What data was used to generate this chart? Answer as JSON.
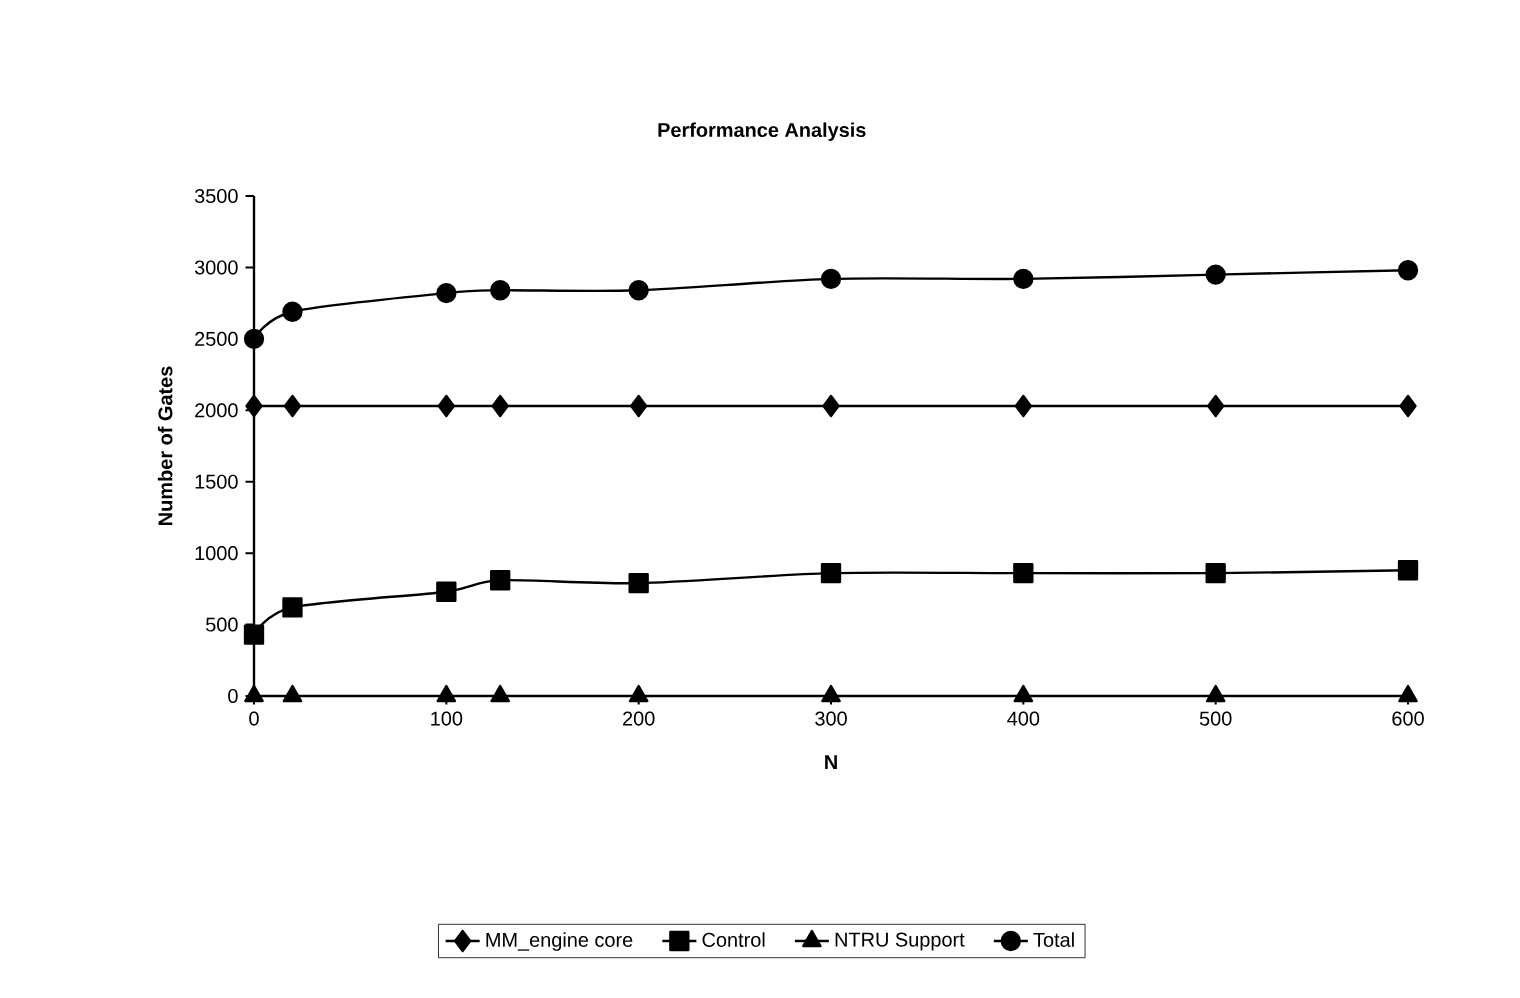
{
  "chart_data": {
    "type": "line",
    "title": "Performance Analysis",
    "xlabel": "N",
    "ylabel": "Number of Gates",
    "x": [
      0,
      20,
      100,
      128,
      200,
      300,
      400,
      500,
      600
    ],
    "series": [
      {
        "name": "MM_engine core",
        "color": "#000000",
        "marker": "diamond",
        "values": [
          2030,
          2030,
          2030,
          2030,
          2030,
          2030,
          2030,
          2030,
          2030
        ]
      },
      {
        "name": "Control",
        "color": "#000000",
        "marker": "square",
        "values": [
          430,
          620,
          730,
          810,
          790,
          860,
          860,
          860,
          880
        ]
      },
      {
        "name": "NTRU Support",
        "color": "#000000",
        "marker": "triangle",
        "values": [
          0,
          0,
          0,
          0,
          0,
          0,
          0,
          0,
          0
        ]
      },
      {
        "name": "Total",
        "color": "#000000",
        "marker": "circle",
        "values": [
          2500,
          2690,
          2820,
          2840,
          2840,
          2920,
          2920,
          2950,
          2980
        ]
      }
    ],
    "xlim": [
      0,
      600
    ],
    "xticks": [
      0,
      100,
      200,
      300,
      400,
      500,
      600
    ],
    "ylim": [
      0,
      3500
    ],
    "yticks": [
      0,
      500,
      1000,
      1500,
      2000,
      2500,
      3000,
      3500
    ],
    "grid": false,
    "legend": "bottom",
    "line_style": "solid"
  }
}
